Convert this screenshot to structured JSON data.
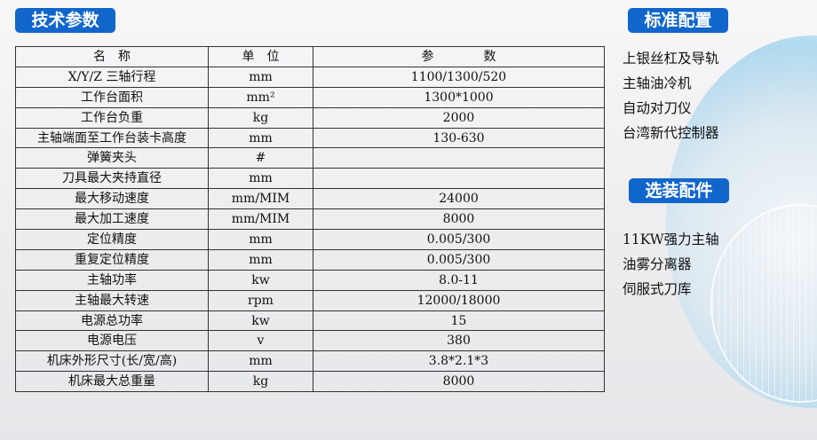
{
  "title": "技术参数",
  "table": {
    "headers": [
      "名　称",
      "单　位",
      "参　　　　数"
    ],
    "rows": [
      [
        "X/Y/Z 三轴行程",
        "mm",
        "1100/1300/520"
      ],
      [
        "工作台面积",
        "mm²",
        "1300*1000"
      ],
      [
        "工作台负重",
        "kg",
        "2000"
      ],
      [
        "主轴端面至工作台装卡高度",
        "mm",
        "130-630"
      ],
      [
        "弹簧夹头",
        "#",
        ""
      ],
      [
        "刀具最大夹持直径",
        "mm",
        ""
      ],
      [
        "最大移动速度",
        "mm/MIM",
        "24000"
      ],
      [
        "最大加工速度",
        "mm/MIM",
        "8000"
      ],
      [
        "定位精度",
        "mm",
        "0.005/300"
      ],
      [
        "重复定位精度",
        "mm",
        "0.005/300"
      ],
      [
        "主轴功率",
        "kw",
        "8.0-11"
      ],
      [
        "主轴最大转速",
        "rpm",
        "12000/18000"
      ],
      [
        "电源总功率",
        "kw",
        "15"
      ],
      [
        "电源电压",
        "v",
        "380"
      ],
      [
        "机床外形尺寸(长/宽/高)",
        "mm",
        "3.8*2.1*3"
      ],
      [
        "机床最大总重量",
        "kg",
        "8000"
      ]
    ]
  },
  "standard": {
    "title": "标准配置",
    "items": [
      "上银丝杠及导轨",
      "主轴油冷机",
      "自动对刀仪",
      "台湾新代控制器"
    ]
  },
  "optional": {
    "title": "选装配件",
    "items": [
      "11KW强力主轴",
      "油雾分离器",
      "伺服式刀库"
    ]
  },
  "colors": {
    "badge": "#1166cc"
  }
}
